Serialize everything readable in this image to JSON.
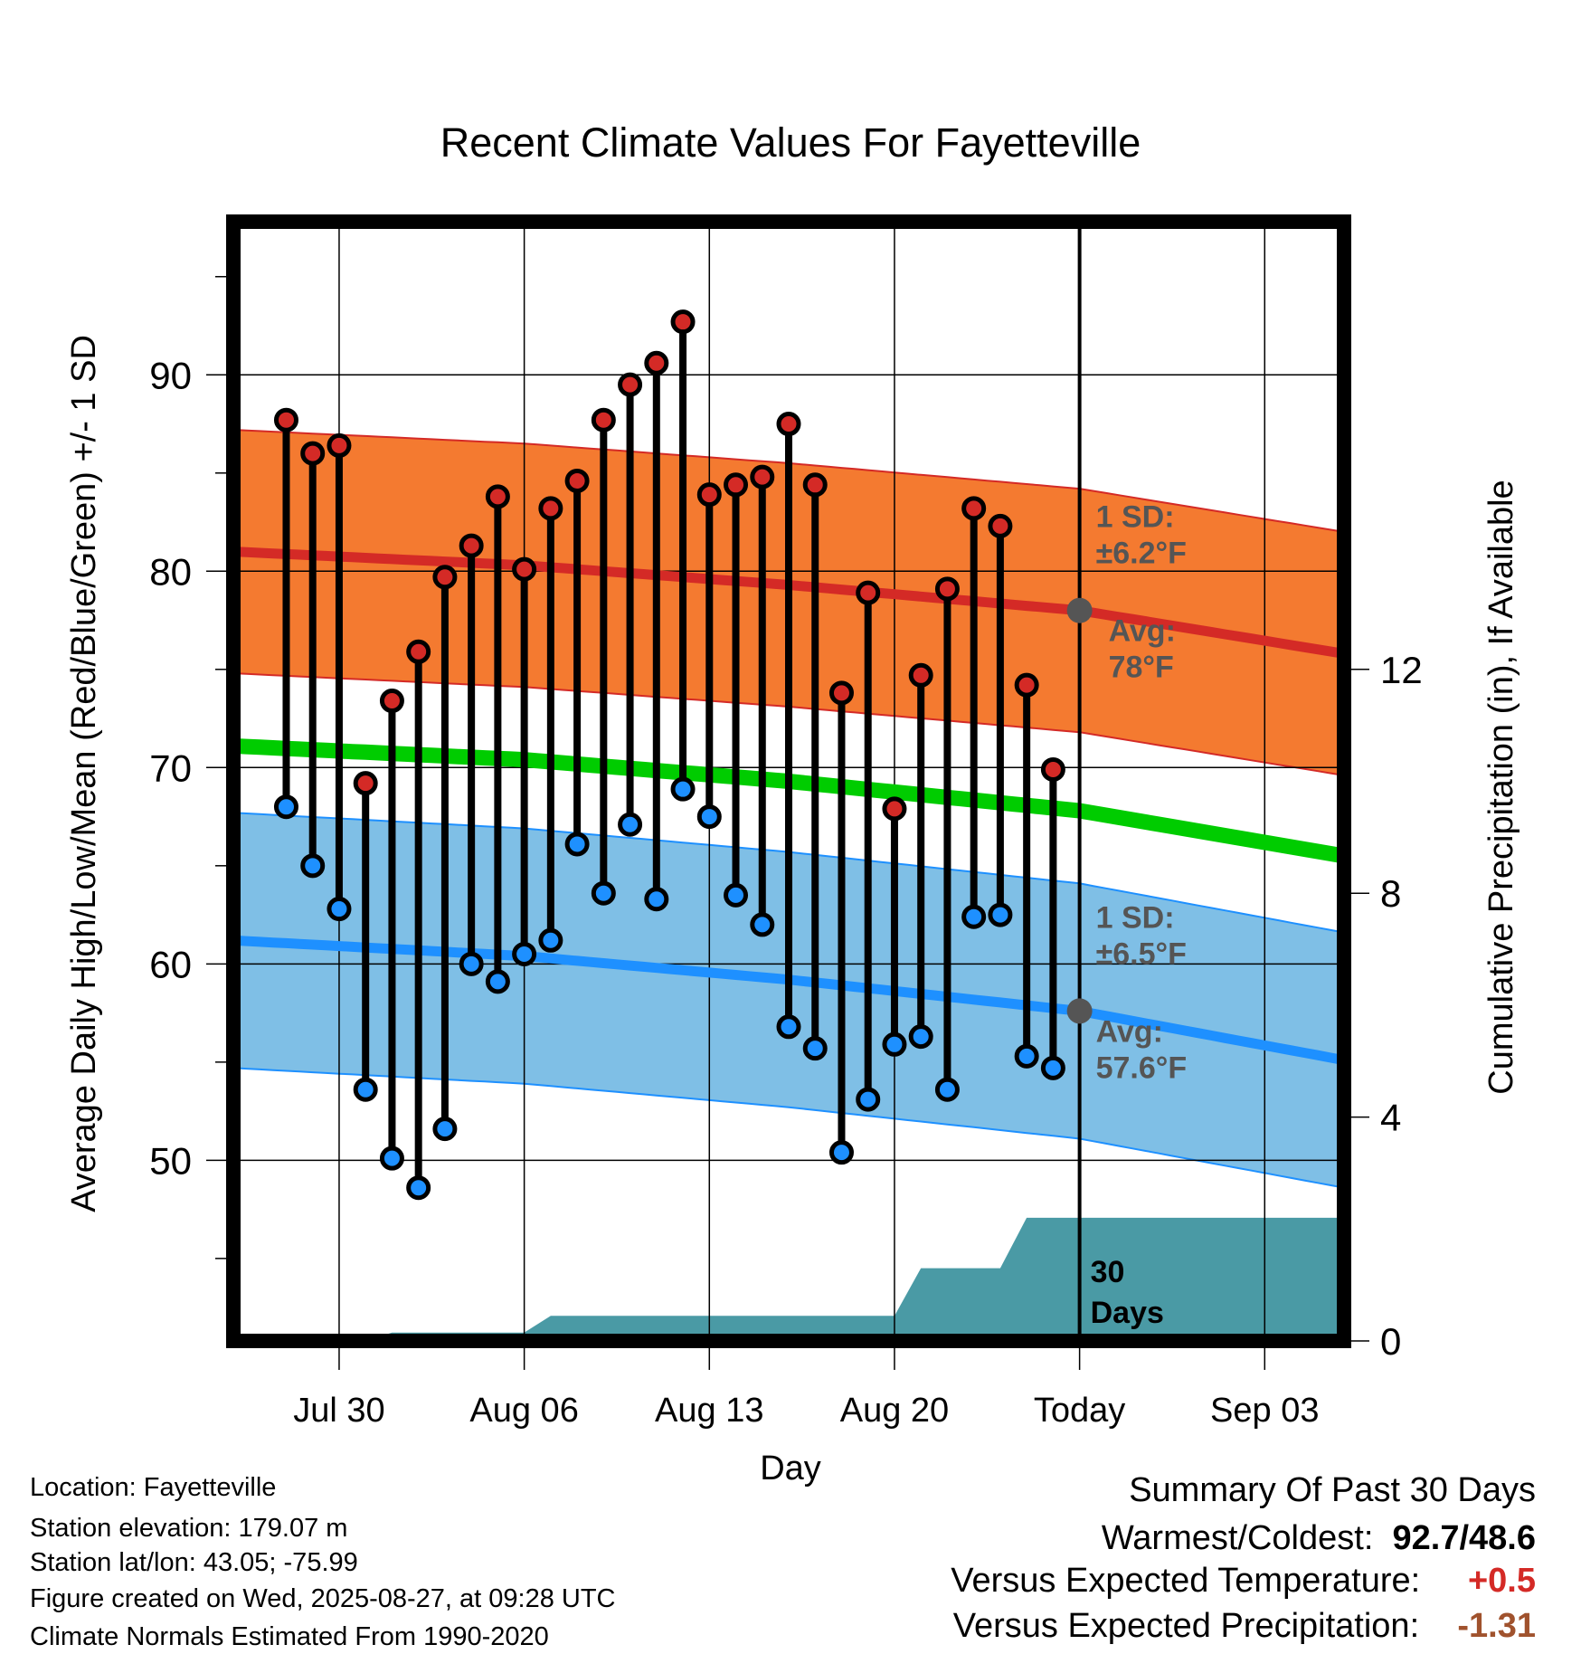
{
  "chart_data": {
    "type": "line",
    "title": "Recent Climate Values For Fayetteville",
    "xlabel": "Day",
    "ylabel": "Average Daily High/Low/Mean (Red/Blue/Green) +/- 1 SD",
    "y2label": "Cumulative Precipitation (in), If Available",
    "x_range": [
      "2025-07-26",
      "2025-09-06"
    ],
    "ylim": [
      40.8,
      97.8
    ],
    "y2lim": [
      0,
      20
    ],
    "x_ticks": [
      {
        "date": "2025-07-30",
        "label": "Jul 30"
      },
      {
        "date": "2025-08-06",
        "label": "Aug 06"
      },
      {
        "date": "2025-08-13",
        "label": "Aug 13"
      },
      {
        "date": "2025-08-20",
        "label": "Aug 20"
      },
      {
        "date": "2025-08-27",
        "label": "Today"
      },
      {
        "date": "2025-09-03",
        "label": "Sep 03"
      }
    ],
    "y_ticks": [
      50,
      60,
      70,
      80,
      90
    ],
    "y2_ticks": [
      0,
      4,
      8,
      12
    ],
    "grid": true,
    "today": "2025-08-27",
    "daily": {
      "dates": [
        "2025-07-28",
        "2025-07-29",
        "2025-07-30",
        "2025-07-31",
        "2025-08-01",
        "2025-08-02",
        "2025-08-03",
        "2025-08-04",
        "2025-08-05",
        "2025-08-06",
        "2025-08-07",
        "2025-08-08",
        "2025-08-09",
        "2025-08-10",
        "2025-08-11",
        "2025-08-12",
        "2025-08-13",
        "2025-08-14",
        "2025-08-15",
        "2025-08-16",
        "2025-08-17",
        "2025-08-18",
        "2025-08-19",
        "2025-08-20",
        "2025-08-21",
        "2025-08-22",
        "2025-08-23",
        "2025-08-24",
        "2025-08-25",
        "2025-08-26"
      ],
      "highs": [
        87.7,
        86.0,
        86.4,
        69.2,
        73.4,
        75.9,
        79.7,
        81.3,
        83.8,
        80.1,
        83.2,
        84.6,
        87.7,
        89.5,
        90.6,
        92.7,
        83.9,
        84.4,
        84.8,
        87.5,
        84.4,
        73.8,
        78.9,
        67.9,
        74.7,
        79.1,
        83.2,
        82.3,
        74.2,
        69.9
      ],
      "lows": [
        68.0,
        65.0,
        62.8,
        53.6,
        50.1,
        48.6,
        51.6,
        60.0,
        59.1,
        60.5,
        61.2,
        66.1,
        63.6,
        67.1,
        63.3,
        68.9,
        67.5,
        63.5,
        62.0,
        56.8,
        55.7,
        50.4,
        53.1,
        55.9,
        56.3,
        53.6,
        62.4,
        62.5,
        55.3,
        54.7
      ]
    },
    "normals": {
      "dates": [
        "2025-07-26",
        "2025-08-06",
        "2025-08-16",
        "2025-08-27",
        "2025-09-06"
      ],
      "high_avg": [
        81.0,
        80.3,
        79.3,
        78.0,
        75.8
      ],
      "low_avg": [
        61.2,
        60.4,
        59.2,
        57.6,
        55.1
      ],
      "mean_avg": [
        71.1,
        70.4,
        69.3,
        67.8,
        65.5
      ]
    },
    "high_band": {
      "sd": 6.2,
      "label_sd": "1 SD:",
      "label_value": "±6.2°F",
      "label_avg": "Avg:",
      "label_avg_value": "78°F"
    },
    "low_band": {
      "sd": 6.5,
      "label_sd": "1 SD:",
      "label_value": "±6.5°F",
      "label_avg": "Avg:",
      "label_avg_value": "57.6°F"
    },
    "precip_cumulative": {
      "dates": [
        "2025-07-27",
        "2025-07-28",
        "2025-07-29",
        "2025-07-30",
        "2025-07-31",
        "2025-08-01",
        "2025-08-02",
        "2025-08-03",
        "2025-08-04",
        "2025-08-05",
        "2025-08-06",
        "2025-08-07",
        "2025-08-08",
        "2025-08-09",
        "2025-08-10",
        "2025-08-11",
        "2025-08-12",
        "2025-08-13",
        "2025-08-14",
        "2025-08-15",
        "2025-08-16",
        "2025-08-17",
        "2025-08-18",
        "2025-08-19",
        "2025-08-20",
        "2025-08-21",
        "2025-08-22",
        "2025-08-23",
        "2025-08-24",
        "2025-08-25",
        "2025-08-26"
      ],
      "values": [
        0,
        0,
        0,
        0,
        0,
        0.15,
        0.15,
        0.15,
        0.15,
        0.15,
        0.15,
        0.45,
        0.45,
        0.45,
        0.45,
        0.45,
        0.45,
        0.45,
        0.45,
        0.45,
        0.45,
        0.45,
        0.45,
        0.45,
        0.45,
        1.3,
        1.3,
        1.3,
        1.3,
        2.2,
        2.2
      ]
    },
    "precip_label": [
      "30",
      "Days"
    ],
    "colors": {
      "high": "#d42a26",
      "high_band": "#f47a30",
      "low": "#1e90ff",
      "low_band": "#7fbfe6",
      "mean": "#00cc00",
      "precip": "#4a9aa5",
      "today_marker": "#555555",
      "band_label": "#555555"
    }
  },
  "info": {
    "location": "Location: Fayetteville",
    "elevation": "Station elevation: 179.07 m",
    "latlon": "Station lat/lon: 43.05; -75.99",
    "created": "Figure created on Wed, 2025-08-27, at 09:28 UTC",
    "normals": "Climate Normals Estimated From 1990-2020"
  },
  "summary": {
    "title": "Summary Of Past 30 Days",
    "warm_cold_label": "Warmest/Coldest:",
    "warm_cold_value": "92.7/48.6",
    "temp_label": "Versus Expected Temperature:",
    "temp_value": "+0.5",
    "temp_color": "#d42a26",
    "precip_label": "Versus Expected Precipitation:",
    "precip_value": "-1.31",
    "precip_color": "#a0522d"
  }
}
